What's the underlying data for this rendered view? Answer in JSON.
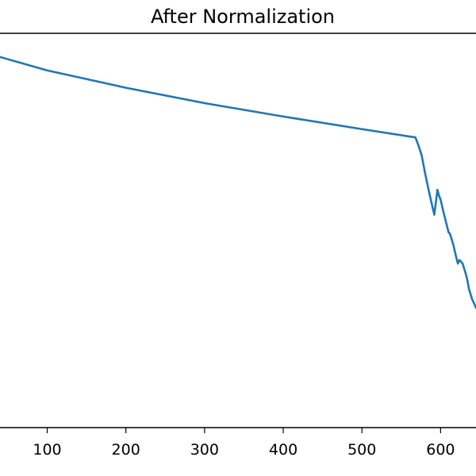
{
  "chart_data": {
    "type": "line",
    "title": "After Normalization",
    "xlabel": "",
    "ylabel": "",
    "xlim": [
      40,
      645
    ],
    "ylim": [
      0.0,
      1.0
    ],
    "x_ticks": [
      100,
      200,
      300,
      400,
      500,
      600
    ],
    "grid": false,
    "series": [
      {
        "color": "#1f77b4",
        "x": [
          40,
          100,
          200,
          300,
          400,
          500,
          568,
          572,
          576,
          580,
          584,
          588,
          592,
          596,
          598,
          600,
          604,
          608,
          610,
          612,
          616,
          620,
          622,
          624,
          628,
          632,
          634,
          636,
          640,
          645
        ],
        "y": [
          0.94,
          0.906,
          0.862,
          0.823,
          0.789,
          0.757,
          0.736,
          0.715,
          0.69,
          0.648,
          0.61,
          0.574,
          0.54,
          0.603,
          0.588,
          0.578,
          0.544,
          0.512,
          0.496,
          0.491,
          0.465,
          0.431,
          0.416,
          0.425,
          0.416,
          0.39,
          0.374,
          0.352,
          0.326,
          0.304
        ]
      }
    ]
  }
}
